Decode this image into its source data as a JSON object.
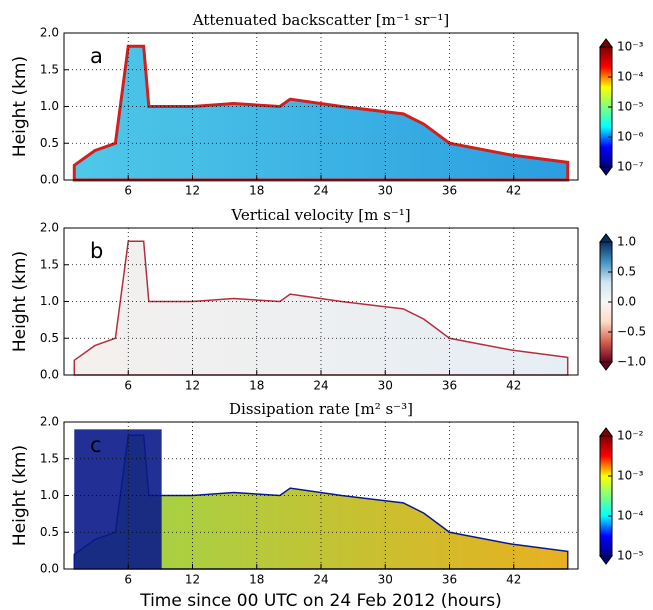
{
  "chart_data": [
    {
      "type": "heatmap",
      "title": "Attenuated backscatter [m⁻¹ sr⁻¹]",
      "panel_label": "a",
      "ylabel": "Height (km)",
      "xlim": [
        0,
        48
      ],
      "xticks": [
        6,
        12,
        18,
        24,
        30,
        36,
        42
      ],
      "ylim": [
        0,
        2
      ],
      "yticks": [
        {
          "value": 0,
          "label": "0.0"
        },
        {
          "value": 0.5,
          "label": "0.5"
        },
        {
          "value": 1,
          "label": "1.0"
        },
        {
          "value": 1.5,
          "label": "1.5"
        },
        {
          "value": 2,
          "label": "2.0"
        }
      ],
      "grid": true,
      "colorbar": {
        "log": true,
        "lim": [
          1e-07,
          0.001
        ],
        "colors": [
          "#00007f",
          "#0000ff",
          "#00ffff",
          "#7fff7f",
          "#ffff00",
          "#ff0000",
          "#7f0000"
        ],
        "ticks": [
          {
            "value": 1e-07,
            "label": "10⁻⁷"
          },
          {
            "value": 1e-06,
            "label": "10⁻⁶"
          },
          {
            "value": 1e-05,
            "label": "10⁻⁵"
          },
          {
            "value": 0.0001,
            "label": "10⁻⁴"
          },
          {
            "value": 0.001,
            "label": "10⁻³"
          }
        ]
      }
    },
    {
      "type": "heatmap",
      "title": "Vertical velocity [m s⁻¹]",
      "panel_label": "b",
      "ylabel": "Height (km)",
      "xlim": [
        0,
        48
      ],
      "xticks": [
        6,
        12,
        18,
        24,
        30,
        36,
        42
      ],
      "ylim": [
        0,
        2
      ],
      "yticks": [
        {
          "value": 0,
          "label": "0.0"
        },
        {
          "value": 0.5,
          "label": "0.5"
        },
        {
          "value": 1,
          "label": "1.0"
        },
        {
          "value": 1.5,
          "label": "1.5"
        },
        {
          "value": 2,
          "label": "2.0"
        }
      ],
      "grid": true,
      "colorbar": {
        "log": false,
        "lim": [
          -1,
          1
        ],
        "colors": [
          "#67001f",
          "#d6604d",
          "#fddbc7",
          "#f7f7f7",
          "#d1e5f0",
          "#4393c3",
          "#053061"
        ],
        "ticks": [
          {
            "value": -1,
            "label": "−1.0"
          },
          {
            "value": -0.5,
            "label": "−0.5"
          },
          {
            "value": 0,
            "label": "0.0"
          },
          {
            "value": 0.5,
            "label": "0.5"
          },
          {
            "value": 1,
            "label": "1.0"
          }
        ]
      }
    },
    {
      "type": "heatmap",
      "title": "Dissipation rate [m² s⁻³]",
      "panel_label": "c",
      "ylabel": "Height (km)",
      "xlabel": "Time since 00 UTC on 24 Feb 2012 (hours)",
      "xlim": [
        0,
        48
      ],
      "xticks": [
        6,
        12,
        18,
        24,
        30,
        36,
        42
      ],
      "ylim": [
        0,
        2
      ],
      "yticks": [
        {
          "value": 0,
          "label": "0.0"
        },
        {
          "value": 0.5,
          "label": "0.5"
        },
        {
          "value": 1,
          "label": "1.0"
        },
        {
          "value": 1.5,
          "label": "1.5"
        },
        {
          "value": 2,
          "label": "2.0"
        }
      ],
      "grid": true,
      "colorbar": {
        "log": true,
        "lim": [
          1e-05,
          0.01
        ],
        "colors": [
          "#00007f",
          "#0000ff",
          "#00ffff",
          "#7fff7f",
          "#ffff00",
          "#ff0000",
          "#7f0000"
        ],
        "ticks": [
          {
            "value": 1e-05,
            "label": "10⁻⁵"
          },
          {
            "value": 0.0001,
            "label": "10⁻⁴"
          },
          {
            "value": 0.001,
            "label": "10⁻³"
          },
          {
            "value": 0.01,
            "label": "10⁻²"
          }
        ]
      }
    }
  ]
}
